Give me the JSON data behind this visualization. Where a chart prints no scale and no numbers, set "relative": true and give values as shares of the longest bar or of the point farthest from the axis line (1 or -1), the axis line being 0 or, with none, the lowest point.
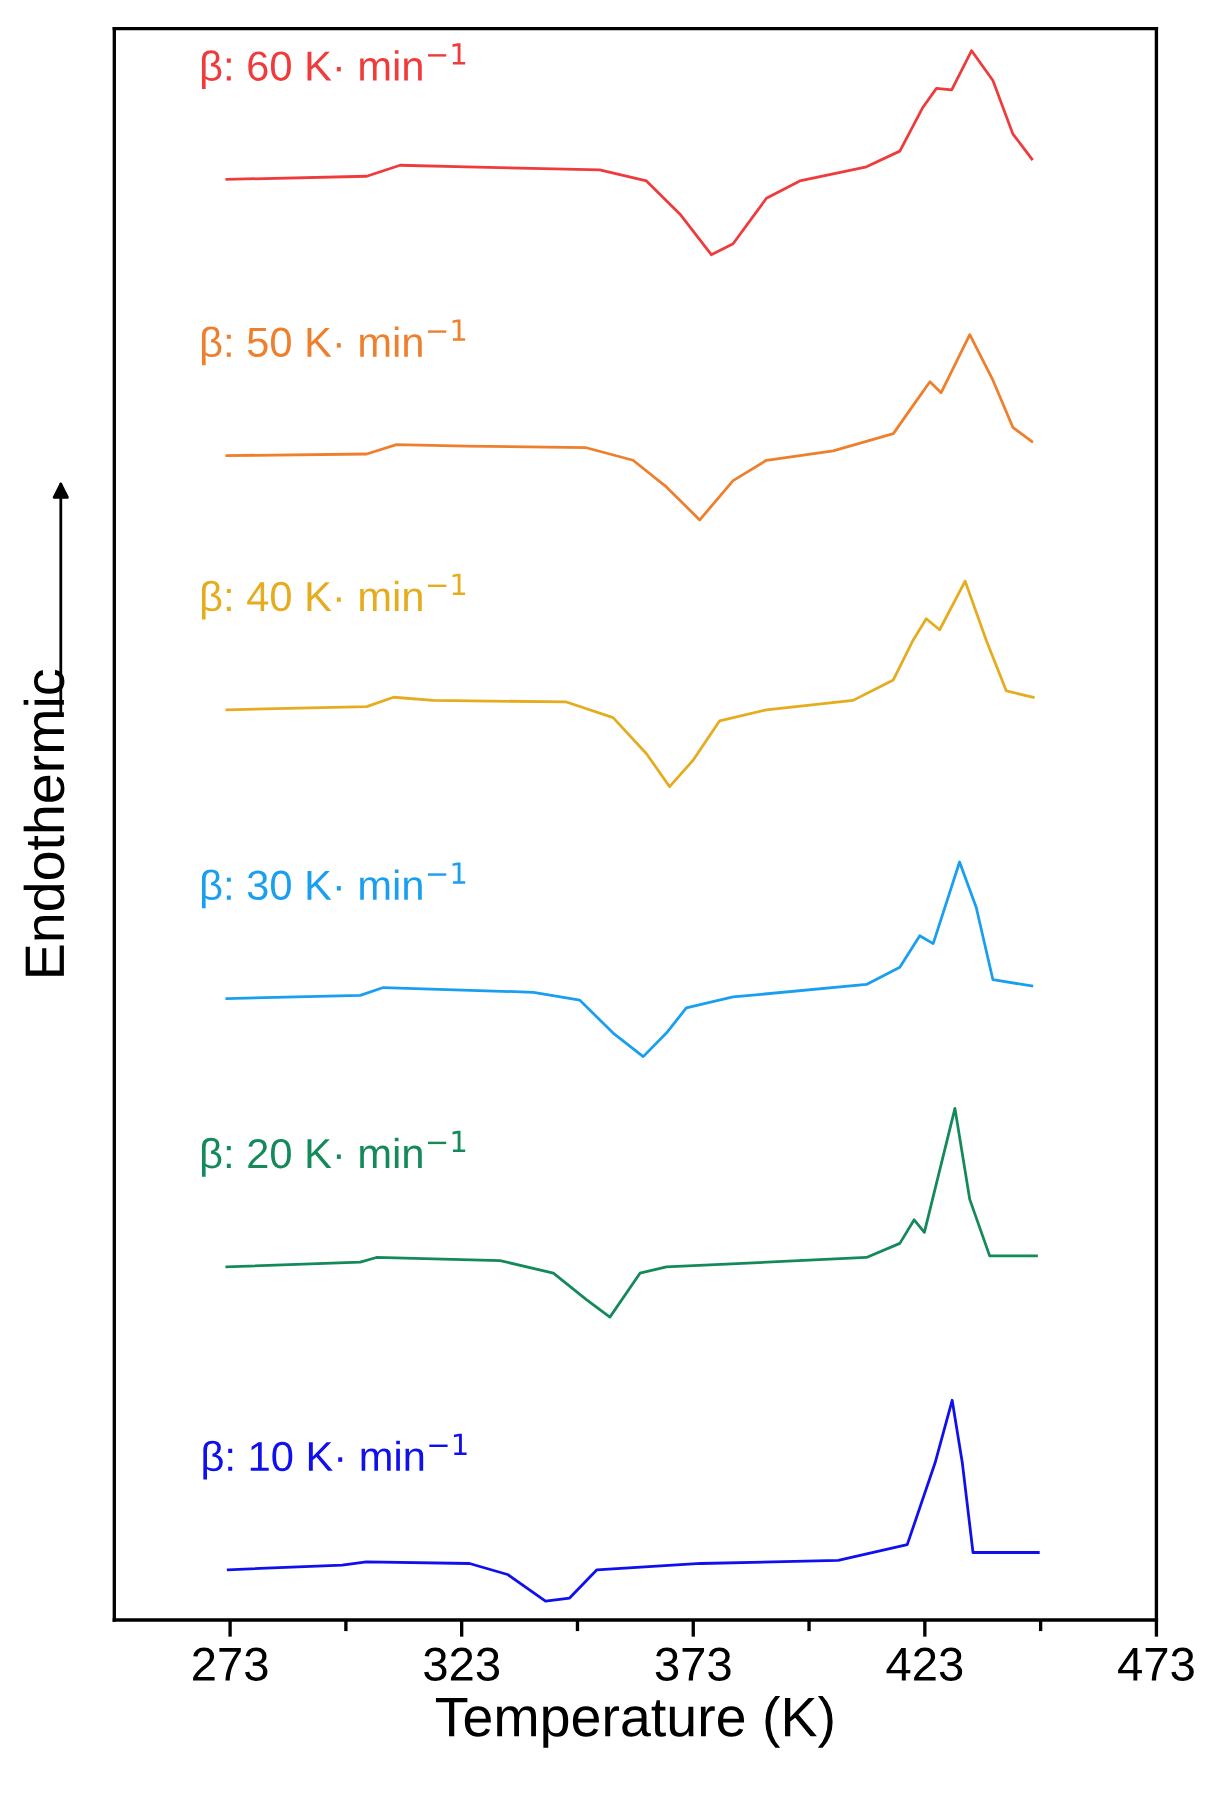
{
  "chart_data": {
    "type": "line",
    "xlabel": "Temperature (K)",
    "ylabel": "Endothermic",
    "relative": true,
    "xlim": [
      248,
      473
    ],
    "xticks": [
      273,
      {
        "value": 298,
        "label": null
      },
      323,
      {
        "value": 348,
        "label": null
      },
      373,
      {
        "value": 398,
        "label": null
      },
      423,
      {
        "value": 448,
        "label": null
      },
      473
    ],
    "grid": false,
    "legend": false,
    "marker": "none",
    "line_style": "solid",
    "tick_labels": "x",
    "series": [
      {
        "name": "β: 60 K· min$^{−1}$",
        "color": "#ef3b3b",
        "x": [
          272.3,
          302.5,
          309.7,
          324.1,
          352.8,
          362.9,
          370.1,
          376.9,
          381.6,
          388.8,
          396.0,
          410.4,
          417.6,
          422.6,
          425.5,
          428.8,
          433.1,
          437.7,
          442.0,
          446.1
        ],
        "values": [
          0.918,
          0.92,
          0.927,
          0.926,
          0.924,
          0.917,
          0.896,
          0.87,
          0.877,
          0.906,
          0.917,
          0.926,
          0.936,
          0.964,
          0.976,
          0.975,
          1.0,
          0.981,
          0.947,
          0.931
        ]
      },
      {
        "name": "β: 50 K· min$^{−1}$",
        "color": "#ee7f2d",
        "x": [
          272.3,
          302.5,
          308.9,
          324.1,
          349.9,
          360.0,
          367.2,
          374.4,
          381.6,
          388.8,
          403.2,
          416.2,
          421.2,
          424.1,
          426.5,
          432.7,
          437.7,
          442.0,
          446.1
        ],
        "values": [
          0.742,
          0.743,
          0.749,
          0.748,
          0.747,
          0.739,
          0.722,
          0.701,
          0.726,
          0.739,
          0.745,
          0.756,
          0.777,
          0.789,
          0.782,
          0.819,
          0.79,
          0.76,
          0.751
        ]
      },
      {
        "name": "β: 40 K· min$^{−1}$",
        "color": "#e5ac1f",
        "x": [
          272.3,
          302.5,
          308.3,
          316.9,
          345.6,
          355.7,
          362.9,
          367.9,
          373.0,
          378.7,
          388.8,
          407.5,
          416.2,
          420.4,
          423.3,
          426.2,
          431.7,
          436.3,
          440.6,
          446.4
        ],
        "values": [
          0.58,
          0.582,
          0.588,
          0.586,
          0.585,
          0.575,
          0.552,
          0.531,
          0.548,
          0.573,
          0.58,
          0.586,
          0.599,
          0.624,
          0.638,
          0.631,
          0.662,
          0.624,
          0.592,
          0.588
        ]
      },
      {
        "name": "β: 30 K· min$^{−1}$",
        "color": "#1a9ff0",
        "x": [
          272.3,
          301.1,
          306.1,
          338.5,
          348.5,
          355.7,
          362.2,
          367.2,
          371.5,
          381.6,
          410.4,
          417.6,
          421.9,
          424.8,
          430.5,
          434.1,
          437.7,
          446.1
        ],
        "values": [
          0.396,
          0.398,
          0.403,
          0.4,
          0.395,
          0.374,
          0.359,
          0.374,
          0.39,
          0.397,
          0.405,
          0.416,
          0.436,
          0.431,
          0.483,
          0.454,
          0.408,
          0.404
        ]
      },
      {
        "name": "β: 20 K· min$^{−1}$",
        "color": "#148a5a",
        "x": [
          272.3,
          301.1,
          304.6,
          331.3,
          342.8,
          350.0,
          355.0,
          361.5,
          367.2,
          410.4,
          417.6,
          420.7,
          422.9,
          429.5,
          432.7,
          437.0,
          447.1
        ],
        "values": [
          0.225,
          0.228,
          0.231,
          0.229,
          0.221,
          0.204,
          0.193,
          0.221,
          0.225,
          0.231,
          0.24,
          0.255,
          0.247,
          0.326,
          0.268,
          0.232,
          0.232
        ]
      },
      {
        "name": "β: 10 K· min$^{−1}$",
        "color": "#1010ee",
        "x": [
          272.6,
          297.2,
          302.4,
          324.7,
          332.9,
          341.1,
          346.3,
          352.2,
          374.6,
          404.3,
          419.2,
          425.2,
          428.9,
          431.1,
          433.4,
          447.5
        ],
        "values": [
          0.032,
          0.035,
          0.037,
          0.036,
          0.029,
          0.012,
          0.014,
          0.032,
          0.036,
          0.038,
          0.048,
          0.1,
          0.14,
          0.1,
          0.043,
          0.043
        ]
      }
    ]
  }
}
